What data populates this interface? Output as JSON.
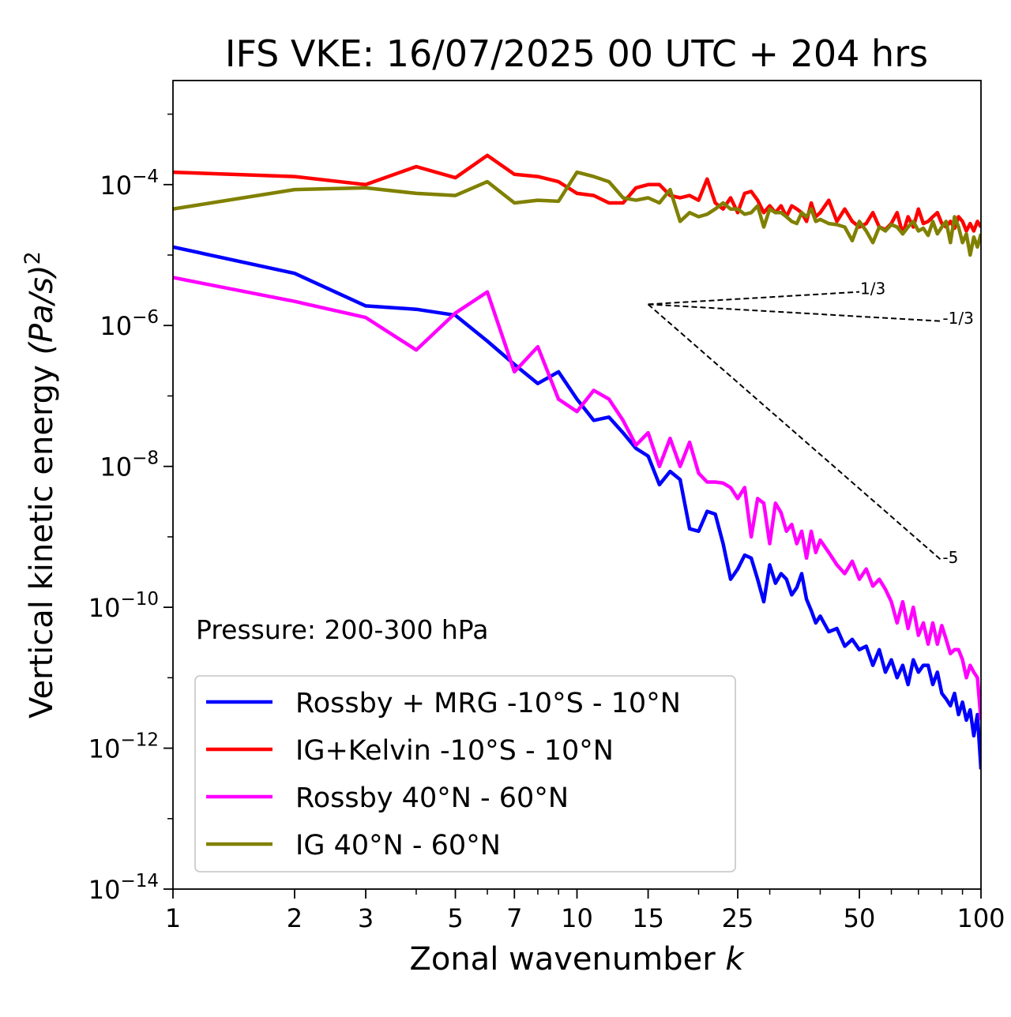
{
  "chart_data": {
    "type": "line",
    "title": "IFS VKE: 16/07/2025 00 UTC + 204 hrs",
    "xlabel": "Zonal wavenumber ",
    "xlabel_italic": "k",
    "ylabel": "Vertical kinetic energy ",
    "ylabel_italic": "(Pa/s)",
    "ylabel_sup": "2",
    "x_scale": "log",
    "y_scale": "log",
    "xlim": [
      1,
      100
    ],
    "ylim": [
      1e-14,
      0.003
    ],
    "grid": false,
    "legend_position": "lower-left",
    "x_ticks": [
      {
        "value": 1,
        "label": "1"
      },
      {
        "value": 2,
        "label": "2"
      },
      {
        "value": 3,
        "label": "3"
      },
      {
        "value": 5,
        "label": "5"
      },
      {
        "value": 7,
        "label": "7"
      },
      {
        "value": 10,
        "label": "10"
      },
      {
        "value": 15,
        "label": "15"
      },
      {
        "value": 25,
        "label": "25"
      },
      {
        "value": 50,
        "label": "50"
      },
      {
        "value": 100,
        "label": "100"
      }
    ],
    "y_ticks": [
      {
        "value": 0.0001,
        "base": "10",
        "exp": "−4"
      },
      {
        "value": 1e-06,
        "base": "10",
        "exp": "−6"
      },
      {
        "value": 1e-08,
        "base": "10",
        "exp": "−8"
      },
      {
        "value": 1e-10,
        "base": "10",
        "exp": "−10"
      },
      {
        "value": 1e-12,
        "base": "10",
        "exp": "−12"
      },
      {
        "value": 1e-14,
        "base": "10",
        "exp": "−14"
      }
    ],
    "annotation": "Pressure: 200-300 hPa",
    "reference_lines": [
      {
        "label": "1/3",
        "x": [
          15,
          50
        ],
        "y": [
          2e-06,
          3e-06
        ]
      },
      {
        "label": "-1/3",
        "x": [
          15,
          80
        ],
        "y": [
          2e-06,
          1.15e-06
        ]
      },
      {
        "label": "-5",
        "x": [
          15,
          80
        ],
        "y": [
          2e-06,
          4.6e-10
        ]
      }
    ],
    "series": [
      {
        "name": "Rossby + MRG -10°S - 10°N",
        "color": "#0000ff",
        "x": [
          1,
          2,
          3,
          4,
          5,
          6,
          7,
          8,
          9,
          10,
          11,
          12,
          13,
          14,
          15,
          16,
          17,
          18,
          19,
          20,
          21,
          22,
          23,
          24,
          25,
          26,
          27,
          28,
          29,
          30,
          31,
          32,
          33,
          34,
          35,
          36,
          37,
          38,
          39,
          40,
          42,
          44,
          46,
          48,
          50,
          52,
          54,
          56,
          58,
          60,
          62,
          64,
          66,
          68,
          70,
          72,
          74,
          76,
          78,
          80,
          82,
          84,
          86,
          88,
          90,
          92,
          94,
          96,
          98,
          100
        ],
        "y": [
          1.3e-05,
          5.5e-06,
          1.9e-06,
          1.7e-06,
          1.4e-06,
          6e-07,
          2.8e-07,
          1.5e-07,
          2.2e-07,
          9e-08,
          4.5e-08,
          5e-08,
          3e-08,
          1.8e-08,
          1.4e-08,
          5.5e-09,
          8.5e-09,
          6.5e-09,
          1.3e-09,
          1.2e-09,
          2.3e-09,
          2.1e-09,
          8e-10,
          2.5e-10,
          3.5e-10,
          5.5e-10,
          5e-10,
          2.5e-10,
          1.2e-10,
          4e-10,
          2.2e-10,
          3e-10,
          2.5e-10,
          1.5e-10,
          1.9e-10,
          3e-10,
          1.3e-10,
          9e-11,
          6e-11,
          7.5e-11,
          4.5e-11,
          5e-11,
          2.8e-11,
          3.5e-11,
          2.5e-11,
          2.8e-11,
          1.5e-11,
          2.5e-11,
          1.2e-11,
          1.8e-11,
          1e-11,
          1.5e-11,
          8e-12,
          1.8e-11,
          1.2e-11,
          1.5e-11,
          1.5e-11,
          8e-12,
          1.2e-11,
          6e-12,
          5e-12,
          4e-12,
          6e-12,
          3e-12,
          4.5e-12,
          2.5e-12,
          3.5e-12,
          1.5e-12,
          3e-12,
          5e-13
        ]
      },
      {
        "name": "IG+Kelvin -10°S - 10°N",
        "color": "#ff0000",
        "x": [
          1,
          2,
          3,
          4,
          5,
          6,
          7,
          8,
          9,
          10,
          11,
          12,
          13,
          14,
          15,
          16,
          17,
          18,
          19,
          20,
          21,
          22,
          23,
          24,
          25,
          26,
          27,
          28,
          29,
          30,
          31,
          32,
          33,
          34,
          35,
          36,
          37,
          38,
          39,
          40,
          42,
          44,
          46,
          48,
          50,
          52,
          54,
          56,
          58,
          60,
          62,
          64,
          66,
          68,
          70,
          72,
          74,
          76,
          78,
          80,
          82,
          84,
          86,
          88,
          90,
          92,
          94,
          96,
          98,
          100
        ],
        "y": [
          0.00015,
          0.00013,
          0.0001,
          0.00018,
          0.000125,
          0.00026,
          0.00014,
          0.00013,
          0.00011,
          7.5e-05,
          7e-05,
          5.5e-05,
          5.5e-05,
          9e-05,
          0.0001,
          0.0001,
          7e-05,
          6.5e-05,
          7e-05,
          6e-05,
          0.00012,
          5.5e-05,
          4.5e-05,
          6.5e-05,
          4e-05,
          7.5e-05,
          8e-05,
          6e-05,
          4e-05,
          5e-05,
          4e-05,
          5e-05,
          3.5e-05,
          5e-05,
          4.5e-05,
          4e-05,
          3e-05,
          5.5e-05,
          3.5e-05,
          4e-05,
          6e-05,
          3e-05,
          4.5e-05,
          3e-05,
          2.5e-05,
          2.8e-05,
          4e-05,
          2.5e-05,
          2.3e-05,
          2.8e-05,
          4e-05,
          2e-05,
          3.5e-05,
          2.5e-05,
          4.5e-05,
          2.8e-05,
          3e-05,
          3.5e-05,
          4e-05,
          2.8e-05,
          2.5e-05,
          3e-05,
          2.4e-05,
          3.5e-05,
          3e-05,
          2.2e-05,
          2.8e-05,
          2.2e-05,
          3e-05,
          2.5e-05
        ]
      },
      {
        "name": "Rossby 40°N - 60°N",
        "color": "#ff00ff",
        "x": [
          1,
          2,
          3,
          4,
          5,
          6,
          7,
          8,
          9,
          10,
          11,
          12,
          13,
          14,
          15,
          16,
          17,
          18,
          19,
          20,
          21,
          22,
          23,
          24,
          25,
          26,
          27,
          28,
          29,
          30,
          31,
          32,
          33,
          34,
          35,
          36,
          37,
          38,
          39,
          40,
          42,
          44,
          46,
          48,
          50,
          52,
          54,
          56,
          58,
          60,
          62,
          64,
          66,
          68,
          70,
          72,
          74,
          76,
          78,
          80,
          82,
          84,
          86,
          88,
          90,
          92,
          94,
          96,
          98,
          100
        ],
        "y": [
          4.8e-06,
          2.2e-06,
          1.3e-06,
          4.5e-07,
          1.5e-06,
          3e-06,
          2.2e-07,
          5e-07,
          9e-08,
          6e-08,
          1.2e-07,
          9e-08,
          4.5e-08,
          2e-08,
          3e-08,
          1e-08,
          2.5e-08,
          1e-08,
          2.2e-08,
          8e-09,
          6e-09,
          6e-09,
          5.8e-09,
          5e-09,
          3.5e-09,
          5e-09,
          1e-09,
          3.5e-09,
          3e-09,
          8e-10,
          3e-09,
          2.2e-09,
          1.2e-09,
          1.5e-09,
          8e-10,
          1.2e-09,
          5e-10,
          1.2e-09,
          6e-10,
          9e-10,
          6e-10,
          4e-10,
          3e-10,
          4.5e-10,
          2.5e-10,
          3.5e-10,
          2e-10,
          2.5e-10,
          1.8e-10,
          1.2e-10,
          6e-11,
          1.2e-10,
          5e-11,
          1e-10,
          4e-11,
          6e-11,
          3e-11,
          6e-11,
          3e-11,
          5.5e-11,
          3.5e-11,
          2.2e-11,
          2.5e-11,
          2.5e-11,
          1.8e-11,
          1e-11,
          1.5e-11,
          1.2e-11,
          1e-11,
          2.5e-12
        ]
      },
      {
        "name": "IG 40°N - 60°N",
        "color": "#808000",
        "x": [
          1,
          2,
          3,
          4,
          5,
          6,
          7,
          8,
          9,
          10,
          11,
          12,
          13,
          14,
          15,
          16,
          17,
          18,
          19,
          20,
          21,
          22,
          23,
          24,
          25,
          26,
          27,
          28,
          29,
          30,
          31,
          32,
          33,
          34,
          35,
          36,
          37,
          38,
          39,
          40,
          42,
          44,
          46,
          48,
          50,
          52,
          54,
          56,
          58,
          60,
          62,
          64,
          66,
          68,
          70,
          72,
          74,
          76,
          78,
          80,
          82,
          84,
          86,
          88,
          90,
          92,
          94,
          96,
          98,
          100
        ],
        "y": [
          4.5e-05,
          8.5e-05,
          9e-05,
          7.5e-05,
          7e-05,
          0.00011,
          5.5e-05,
          6e-05,
          5.8e-05,
          0.00015,
          0.00013,
          0.00011,
          6.5e-05,
          6e-05,
          6.5e-05,
          5.5e-05,
          8.5e-05,
          3e-05,
          4e-05,
          3.5e-05,
          3.8e-05,
          4.5e-05,
          5.5e-05,
          4.5e-05,
          4.5e-05,
          3.8e-05,
          4e-05,
          5e-05,
          2.5e-05,
          4.5e-05,
          4e-05,
          4e-05,
          3.5e-05,
          3e-05,
          2.8e-05,
          4e-05,
          3.5e-05,
          4.5e-05,
          3e-05,
          3.2e-05,
          2.8e-05,
          2.7e-05,
          2.5e-05,
          1.6e-05,
          3e-05,
          2.2e-05,
          1.5e-05,
          2.5e-05,
          2.2e-05,
          2.7e-05,
          2.5e-05,
          2e-05,
          2.5e-05,
          3e-05,
          2.2e-05,
          2.4e-05,
          1.9e-05,
          3e-05,
          2e-05,
          2.5e-05,
          3e-05,
          1.5e-05,
          3.5e-05,
          2.5e-05,
          1.5e-05,
          2e-05,
          1e-05,
          1.8e-05,
          1.3e-05,
          2e-05
        ]
      }
    ]
  }
}
